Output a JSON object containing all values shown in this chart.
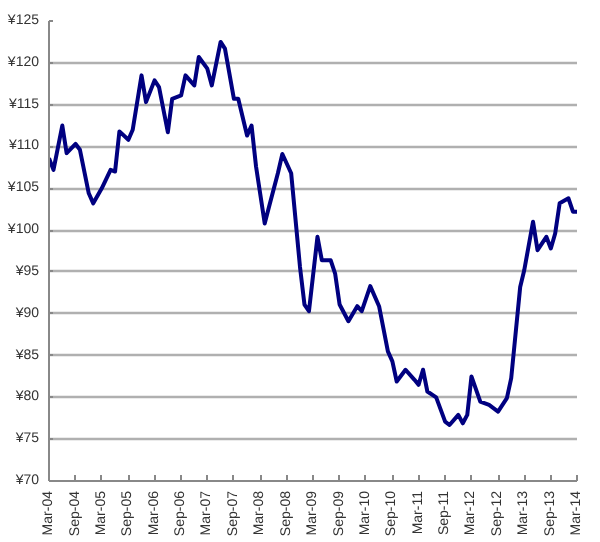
{
  "chart_data": {
    "type": "line",
    "x": [
      "2004-03",
      "2004-04",
      "2004-06",
      "2004-07",
      "2004-09",
      "2004-10",
      "2004-12",
      "2005-01",
      "2005-03",
      "2005-05",
      "2005-06",
      "2005-07",
      "2005-09",
      "2005-10",
      "2005-12",
      "2006-01",
      "2006-03",
      "2006-04",
      "2006-06",
      "2006-07",
      "2006-09",
      "2006-10",
      "2006-12",
      "2007-01",
      "2007-03",
      "2007-04",
      "2007-06",
      "2007-07",
      "2007-09",
      "2007-10",
      "2007-12",
      "2008-01",
      "2008-02",
      "2008-04",
      "2008-05",
      "2008-07",
      "2008-08",
      "2008-10",
      "2008-12",
      "2009-01",
      "2009-02",
      "2009-04",
      "2009-05",
      "2009-07",
      "2009-08",
      "2009-09",
      "2009-11",
      "2010-01",
      "2010-02",
      "2010-04",
      "2010-06",
      "2010-08",
      "2010-09",
      "2010-10",
      "2010-12",
      "2011-02",
      "2011-03",
      "2011-04",
      "2011-05",
      "2011-07",
      "2011-09",
      "2011-10",
      "2011-12",
      "2012-01",
      "2012-02",
      "2012-03",
      "2012-05",
      "2012-07",
      "2012-09",
      "2012-11",
      "2012-12",
      "2013-02",
      "2013-03",
      "2013-05",
      "2013-06",
      "2013-08",
      "2013-09",
      "2013-10",
      "2013-11",
      "2014-01",
      "2014-02",
      "2014-03"
    ],
    "series": [
      {
        "color": "#000080",
        "values": [
          108.6,
          107.2,
          112.5,
          109.2,
          110.3,
          109.6,
          104.4,
          103.2,
          105.0,
          107.2,
          107.0,
          111.8,
          110.8,
          112.0,
          118.5,
          115.3,
          117.9,
          117.1,
          111.7,
          115.7,
          116.1,
          118.5,
          117.3,
          120.7,
          119.3,
          117.3,
          122.5,
          121.7,
          115.7,
          115.7,
          111.3,
          112.5,
          107.6,
          100.8,
          102.8,
          106.8,
          109.1,
          106.8,
          95.6,
          91.1,
          90.3,
          99.2,
          96.4,
          96.4,
          94.8,
          91.1,
          89.1,
          90.9,
          90.3,
          93.3,
          90.9,
          85.5,
          84.3,
          81.9,
          83.3,
          82.1,
          81.5,
          83.3,
          80.7,
          80.0,
          77.1,
          76.7,
          77.9,
          76.9,
          77.9,
          82.5,
          79.5,
          79.1,
          78.3,
          79.9,
          82.3,
          93.2,
          95.2,
          101.0,
          97.6,
          99.2,
          97.8,
          99.6,
          103.2,
          103.8,
          102.2,
          102.2
        ]
      }
    ],
    "xlim": [
      "2004-03",
      "2014-03"
    ],
    "xticks": [
      {
        "value": "2004-03",
        "label": "Mar-04"
      },
      {
        "value": "2004-09",
        "label": "Sep-04"
      },
      {
        "value": "2005-03",
        "label": "Mar-05"
      },
      {
        "value": "2005-09",
        "label": "Sep-05"
      },
      {
        "value": "2006-03",
        "label": "Mar-06"
      },
      {
        "value": "2006-09",
        "label": "Sep-06"
      },
      {
        "value": "2007-03",
        "label": "Mar-07"
      },
      {
        "value": "2007-09",
        "label": "Sep-07"
      },
      {
        "value": "2008-03",
        "label": "Mar-08"
      },
      {
        "value": "2008-09",
        "label": "Sep-08"
      },
      {
        "value": "2009-03",
        "label": "Mar-09"
      },
      {
        "value": "2009-09",
        "label": "Sep-09"
      },
      {
        "value": "2010-03",
        "label": "Mar-10"
      },
      {
        "value": "2010-09",
        "label": "Sep-10"
      },
      {
        "value": "2011-03",
        "label": "Mar-11"
      },
      {
        "value": "2011-09",
        "label": "Sep-11"
      },
      {
        "value": "2012-03",
        "label": "Mar-12"
      },
      {
        "value": "2012-09",
        "label": "Sep-12"
      },
      {
        "value": "2013-03",
        "label": "Mar-13"
      },
      {
        "value": "2013-09",
        "label": "Sep-13"
      },
      {
        "value": "2014-03",
        "label": "Mar-14"
      }
    ],
    "ylim": [
      70,
      125
    ],
    "yticks": [
      {
        "value": 70,
        "label": "¥70"
      },
      {
        "value": 75,
        "label": "¥75"
      },
      {
        "value": 80,
        "label": "¥80"
      },
      {
        "value": 85,
        "label": "¥85"
      },
      {
        "value": 90,
        "label": "¥90"
      },
      {
        "value": 95,
        "label": "¥95"
      },
      {
        "value": 100,
        "label": "¥100"
      },
      {
        "value": 105,
        "label": "¥105"
      },
      {
        "value": 110,
        "label": "¥110"
      },
      {
        "value": 115,
        "label": "¥115"
      },
      {
        "value": 120,
        "label": "¥120"
      },
      {
        "value": 125,
        "label": "¥125"
      }
    ],
    "grid": "y",
    "marker": "none",
    "line_style": "solid"
  }
}
